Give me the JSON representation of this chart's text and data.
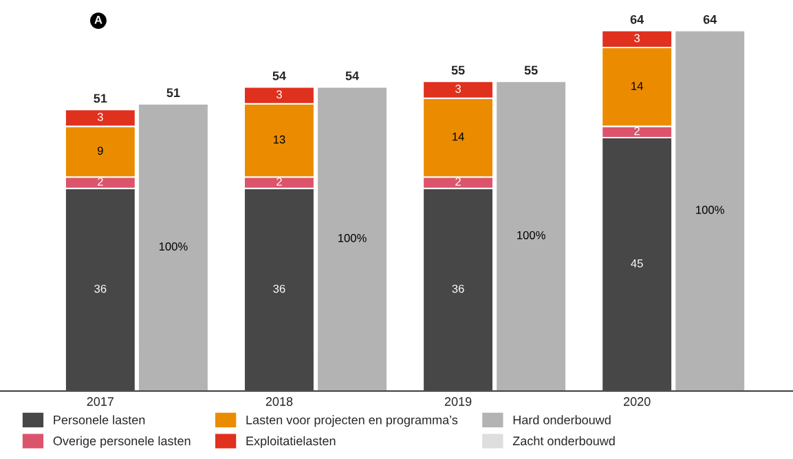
{
  "chart_data": {
    "type": "bar",
    "stacked": true,
    "categories": [
      "2017",
      null,
      "2018",
      null,
      "2019",
      null,
      "2020",
      null
    ],
    "series": [
      {
        "name": "Personele lasten",
        "color": "#474747",
        "values": [
          36,
          null,
          36,
          null,
          36,
          null,
          45,
          null
        ]
      },
      {
        "name": "Overige personele lasten",
        "color": "#dc546c",
        "values": [
          2,
          null,
          2,
          null,
          2,
          null,
          2,
          null
        ]
      },
      {
        "name": "Lasten voor projecten en programma’s",
        "color": "#eb8c00",
        "values": [
          9,
          null,
          13,
          null,
          14,
          null,
          14,
          null
        ]
      },
      {
        "name": "Exploitatielasten",
        "color": "#e0301e",
        "values": [
          3,
          null,
          3,
          null,
          3,
          null,
          3,
          null
        ]
      },
      {
        "name": "Hard onderbouwd",
        "color": "#b3b3b3",
        "values": [
          null,
          51,
          null,
          54,
          null,
          55,
          null,
          64
        ],
        "value_labels": [
          null,
          null,
          null,
          null,
          null,
          null,
          null,
          null
        ]
      },
      {
        "name": "Zacht onderbouwd",
        "color": "#dedede",
        "values": [
          null,
          null,
          null,
          null,
          null,
          null,
          null,
          null
        ]
      }
    ],
    "data_labels": true,
    "totals": [
      "51",
      "51",
      "54",
      "54",
      "55",
      "55",
      "64",
      "64"
    ],
    "annotations": [
      "A",
      "100%",
      "100%",
      "100%",
      "100%"
    ],
    "legend": "bottom",
    "grid": false
  }
}
